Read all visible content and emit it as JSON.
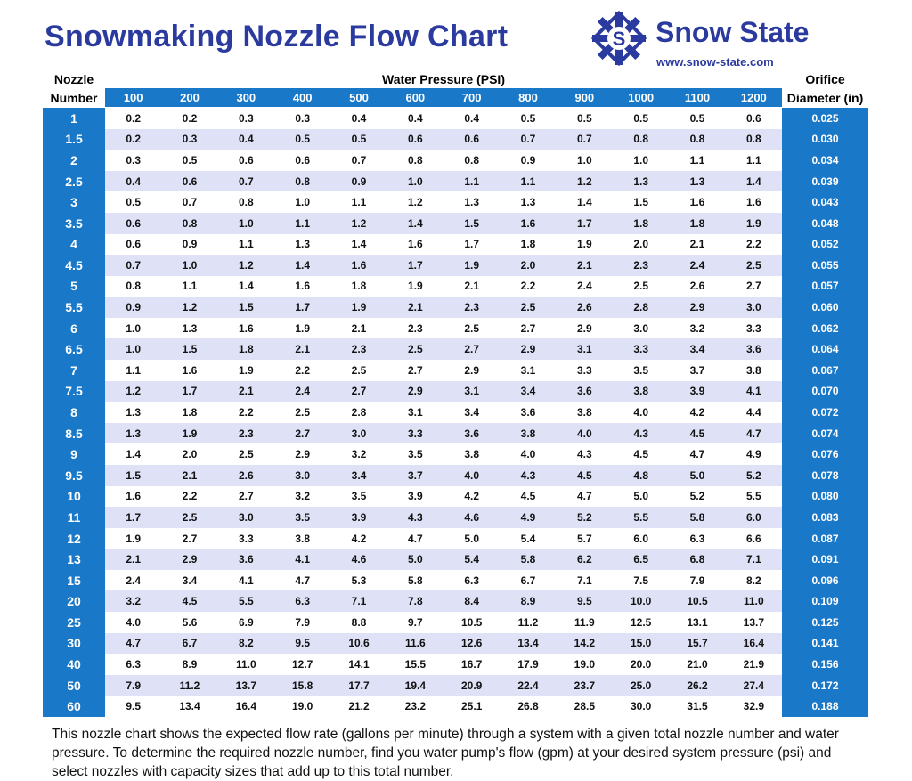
{
  "header": {
    "title": "Snowmaking Nozzle Flow Chart",
    "brand": "Snow State",
    "url": "www.snow-state.com"
  },
  "table": {
    "nozzle_header": [
      "Nozzle",
      "Number"
    ],
    "pressure_header": "Water Pressure (PSI)",
    "diameter_header": [
      "Orifice",
      "Diameter (in)"
    ],
    "pressures": [
      "100",
      "200",
      "300",
      "400",
      "500",
      "600",
      "700",
      "800",
      "900",
      "1000",
      "1100",
      "1200"
    ],
    "rows": [
      {
        "nozzle": "1",
        "flows": [
          "0.2",
          "0.2",
          "0.3",
          "0.3",
          "0.4",
          "0.4",
          "0.4",
          "0.5",
          "0.5",
          "0.5",
          "0.5",
          "0.6"
        ],
        "diameter": "0.025"
      },
      {
        "nozzle": "1.5",
        "flows": [
          "0.2",
          "0.3",
          "0.4",
          "0.5",
          "0.5",
          "0.6",
          "0.6",
          "0.7",
          "0.7",
          "0.8",
          "0.8",
          "0.8"
        ],
        "diameter": "0.030"
      },
      {
        "nozzle": "2",
        "flows": [
          "0.3",
          "0.5",
          "0.6",
          "0.6",
          "0.7",
          "0.8",
          "0.8",
          "0.9",
          "1.0",
          "1.0",
          "1.1",
          "1.1"
        ],
        "diameter": "0.034"
      },
      {
        "nozzle": "2.5",
        "flows": [
          "0.4",
          "0.6",
          "0.7",
          "0.8",
          "0.9",
          "1.0",
          "1.1",
          "1.1",
          "1.2",
          "1.3",
          "1.3",
          "1.4"
        ],
        "diameter": "0.039"
      },
      {
        "nozzle": "3",
        "flows": [
          "0.5",
          "0.7",
          "0.8",
          "1.0",
          "1.1",
          "1.2",
          "1.3",
          "1.3",
          "1.4",
          "1.5",
          "1.6",
          "1.6"
        ],
        "diameter": "0.043"
      },
      {
        "nozzle": "3.5",
        "flows": [
          "0.6",
          "0.8",
          "1.0",
          "1.1",
          "1.2",
          "1.4",
          "1.5",
          "1.6",
          "1.7",
          "1.8",
          "1.8",
          "1.9"
        ],
        "diameter": "0.048"
      },
      {
        "nozzle": "4",
        "flows": [
          "0.6",
          "0.9",
          "1.1",
          "1.3",
          "1.4",
          "1.6",
          "1.7",
          "1.8",
          "1.9",
          "2.0",
          "2.1",
          "2.2"
        ],
        "diameter": "0.052"
      },
      {
        "nozzle": "4.5",
        "flows": [
          "0.7",
          "1.0",
          "1.2",
          "1.4",
          "1.6",
          "1.7",
          "1.9",
          "2.0",
          "2.1",
          "2.3",
          "2.4",
          "2.5"
        ],
        "diameter": "0.055"
      },
      {
        "nozzle": "5",
        "flows": [
          "0.8",
          "1.1",
          "1.4",
          "1.6",
          "1.8",
          "1.9",
          "2.1",
          "2.2",
          "2.4",
          "2.5",
          "2.6",
          "2.7"
        ],
        "diameter": "0.057"
      },
      {
        "nozzle": "5.5",
        "flows": [
          "0.9",
          "1.2",
          "1.5",
          "1.7",
          "1.9",
          "2.1",
          "2.3",
          "2.5",
          "2.6",
          "2.8",
          "2.9",
          "3.0"
        ],
        "diameter": "0.060"
      },
      {
        "nozzle": "6",
        "flows": [
          "1.0",
          "1.3",
          "1.6",
          "1.9",
          "2.1",
          "2.3",
          "2.5",
          "2.7",
          "2.9",
          "3.0",
          "3.2",
          "3.3"
        ],
        "diameter": "0.062"
      },
      {
        "nozzle": "6.5",
        "flows": [
          "1.0",
          "1.5",
          "1.8",
          "2.1",
          "2.3",
          "2.5",
          "2.7",
          "2.9",
          "3.1",
          "3.3",
          "3.4",
          "3.6"
        ],
        "diameter": "0.064"
      },
      {
        "nozzle": "7",
        "flows": [
          "1.1",
          "1.6",
          "1.9",
          "2.2",
          "2.5",
          "2.7",
          "2.9",
          "3.1",
          "3.3",
          "3.5",
          "3.7",
          "3.8"
        ],
        "diameter": "0.067"
      },
      {
        "nozzle": "7.5",
        "flows": [
          "1.2",
          "1.7",
          "2.1",
          "2.4",
          "2.7",
          "2.9",
          "3.1",
          "3.4",
          "3.6",
          "3.8",
          "3.9",
          "4.1"
        ],
        "diameter": "0.070"
      },
      {
        "nozzle": "8",
        "flows": [
          "1.3",
          "1.8",
          "2.2",
          "2.5",
          "2.8",
          "3.1",
          "3.4",
          "3.6",
          "3.8",
          "4.0",
          "4.2",
          "4.4"
        ],
        "diameter": "0.072"
      },
      {
        "nozzle": "8.5",
        "flows": [
          "1.3",
          "1.9",
          "2.3",
          "2.7",
          "3.0",
          "3.3",
          "3.6",
          "3.8",
          "4.0",
          "4.3",
          "4.5",
          "4.7"
        ],
        "diameter": "0.074"
      },
      {
        "nozzle": "9",
        "flows": [
          "1.4",
          "2.0",
          "2.5",
          "2.9",
          "3.2",
          "3.5",
          "3.8",
          "4.0",
          "4.3",
          "4.5",
          "4.7",
          "4.9"
        ],
        "diameter": "0.076"
      },
      {
        "nozzle": "9.5",
        "flows": [
          "1.5",
          "2.1",
          "2.6",
          "3.0",
          "3.4",
          "3.7",
          "4.0",
          "4.3",
          "4.5",
          "4.8",
          "5.0",
          "5.2"
        ],
        "diameter": "0.078"
      },
      {
        "nozzle": "10",
        "flows": [
          "1.6",
          "2.2",
          "2.7",
          "3.2",
          "3.5",
          "3.9",
          "4.2",
          "4.5",
          "4.7",
          "5.0",
          "5.2",
          "5.5"
        ],
        "diameter": "0.080"
      },
      {
        "nozzle": "11",
        "flows": [
          "1.7",
          "2.5",
          "3.0",
          "3.5",
          "3.9",
          "4.3",
          "4.6",
          "4.9",
          "5.2",
          "5.5",
          "5.8",
          "6.0"
        ],
        "diameter": "0.083"
      },
      {
        "nozzle": "12",
        "flows": [
          "1.9",
          "2.7",
          "3.3",
          "3.8",
          "4.2",
          "4.7",
          "5.0",
          "5.4",
          "5.7",
          "6.0",
          "6.3",
          "6.6"
        ],
        "diameter": "0.087"
      },
      {
        "nozzle": "13",
        "flows": [
          "2.1",
          "2.9",
          "3.6",
          "4.1",
          "4.6",
          "5.0",
          "5.4",
          "5.8",
          "6.2",
          "6.5",
          "6.8",
          "7.1"
        ],
        "diameter": "0.091"
      },
      {
        "nozzle": "15",
        "flows": [
          "2.4",
          "3.4",
          "4.1",
          "4.7",
          "5.3",
          "5.8",
          "6.3",
          "6.7",
          "7.1",
          "7.5",
          "7.9",
          "8.2"
        ],
        "diameter": "0.096"
      },
      {
        "nozzle": "20",
        "flows": [
          "3.2",
          "4.5",
          "5.5",
          "6.3",
          "7.1",
          "7.8",
          "8.4",
          "8.9",
          "9.5",
          "10.0",
          "10.5",
          "11.0"
        ],
        "diameter": "0.109"
      },
      {
        "nozzle": "25",
        "flows": [
          "4.0",
          "5.6",
          "6.9",
          "7.9",
          "8.8",
          "9.7",
          "10.5",
          "11.2",
          "11.9",
          "12.5",
          "13.1",
          "13.7"
        ],
        "diameter": "0.125"
      },
      {
        "nozzle": "30",
        "flows": [
          "4.7",
          "6.7",
          "8.2",
          "9.5",
          "10.6",
          "11.6",
          "12.6",
          "13.4",
          "14.2",
          "15.0",
          "15.7",
          "16.4"
        ],
        "diameter": "0.141"
      },
      {
        "nozzle": "40",
        "flows": [
          "6.3",
          "8.9",
          "11.0",
          "12.7",
          "14.1",
          "15.5",
          "16.7",
          "17.9",
          "19.0",
          "20.0",
          "21.0",
          "21.9"
        ],
        "diameter": "0.156"
      },
      {
        "nozzle": "50",
        "flows": [
          "7.9",
          "11.2",
          "13.7",
          "15.8",
          "17.7",
          "19.4",
          "20.9",
          "22.4",
          "23.7",
          "25.0",
          "26.2",
          "27.4"
        ],
        "diameter": "0.172"
      },
      {
        "nozzle": "60",
        "flows": [
          "9.5",
          "13.4",
          "16.4",
          "19.0",
          "21.2",
          "23.2",
          "25.1",
          "26.8",
          "28.5",
          "30.0",
          "31.5",
          "32.9"
        ],
        "diameter": "0.188"
      }
    ]
  },
  "footer": "This nozzle chart shows the expected flow rate (gallons per minute) through a system with a given total nozzle number and water pressure. To determine the required nozzle number, find you water pump's flow (gpm) at your desired system pressure (psi) and select nozzles with capacity sizes that add up to this total number."
}
